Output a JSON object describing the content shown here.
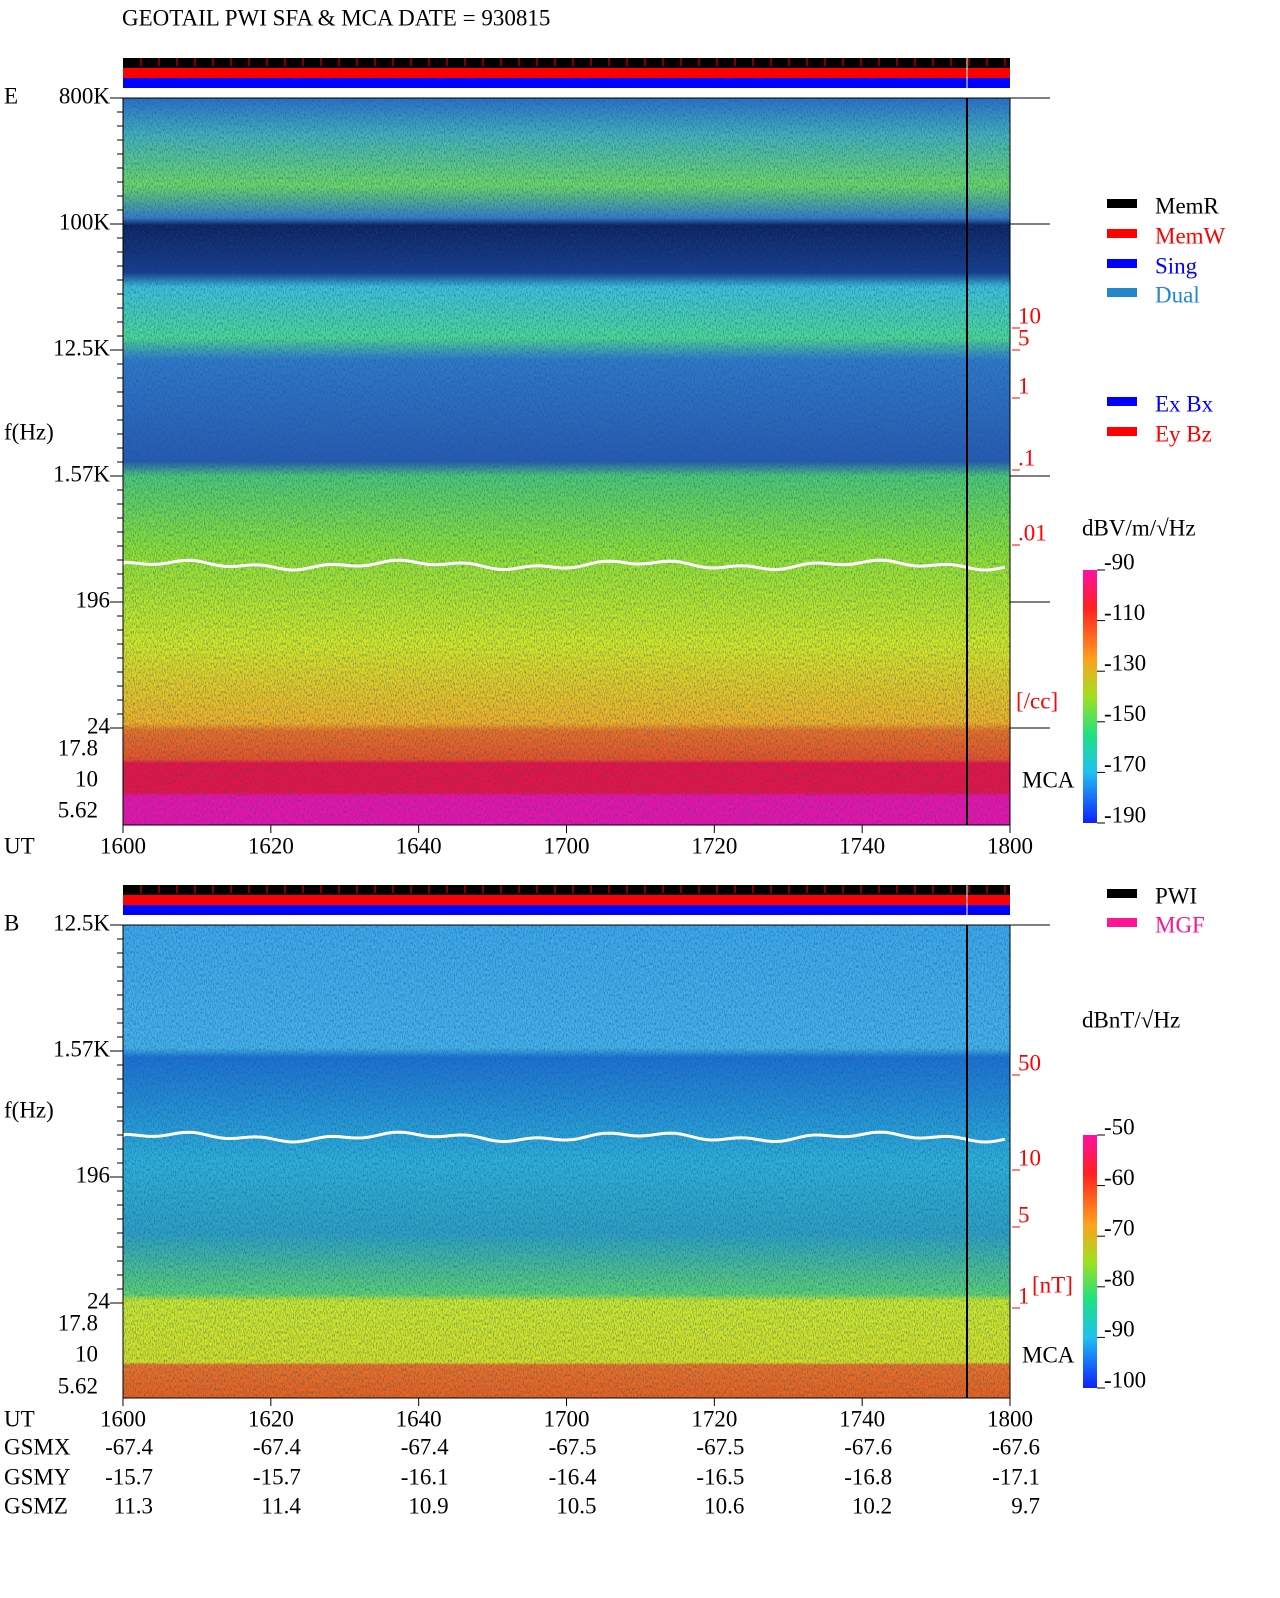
{
  "title": "GEOTAIL  PWI SFA & MCA   DATE = 930815",
  "x_label": "UT",
  "x_ticks": [
    "1600",
    "1620",
    "1640",
    "1700",
    "1720",
    "1740",
    "1800"
  ],
  "panels": [
    {
      "label": "E",
      "y_label": "f(Hz)",
      "freq_ticks": [
        "800K",
        "100K",
        "12.5K",
        "1.57K",
        "196",
        "24"
      ],
      "mca_ticks": [
        "17.8",
        "10",
        "5.62"
      ],
      "mca_label": "MCA",
      "side_ticks": [
        "10",
        "5",
        "1",
        ".1",
        ".01"
      ],
      "side_unit": "[/cc]",
      "legend": [
        {
          "name": "MemR",
          "color": "#000000"
        },
        {
          "name": "MemW",
          "color": "#ff0000"
        },
        {
          "name": "Sing",
          "color": "#0000ff"
        },
        {
          "name": "Dual",
          "color": "#2288cc"
        }
      ],
      "legend2": [
        {
          "name": "Ex Bx",
          "color": "#0000ff"
        },
        {
          "name": "Ey Bz",
          "color": "#ff0000"
        }
      ],
      "colorbar_unit": "dBV/m/√Hz",
      "colorbar_ticks": [
        -90,
        -110,
        -130,
        -150,
        -170,
        -190
      ]
    },
    {
      "label": "B",
      "y_label": "f(Hz)",
      "freq_ticks": [
        "12.5K",
        "1.57K",
        "196",
        "24"
      ],
      "mca_ticks": [
        "17.8",
        "10",
        "5.62"
      ],
      "mca_label": "MCA",
      "side_ticks": [
        "50",
        "10",
        "5",
        "1"
      ],
      "side_unit": "[nT]",
      "legend": [
        {
          "name": "PWI",
          "color": "#000000"
        },
        {
          "name": "MGF",
          "color": "#ff1493"
        }
      ],
      "colorbar_unit": "dBnT/√Hz",
      "colorbar_ticks": [
        -50,
        -60,
        -70,
        -80,
        -90,
        -100
      ]
    }
  ],
  "orbit": [
    {
      "name": "GSMX",
      "values": [
        -67.4,
        -67.4,
        -67.4,
        -67.5,
        -67.5,
        -67.6,
        -67.6
      ]
    },
    {
      "name": "GSMY",
      "values": [
        -15.7,
        -15.7,
        -16.1,
        -16.4,
        -16.5,
        -16.8,
        -17.1
      ]
    },
    {
      "name": "GSMZ",
      "values": [
        11.3,
        11.4,
        10.9,
        10.5,
        10.6,
        10.2,
        9.7
      ]
    }
  ]
}
